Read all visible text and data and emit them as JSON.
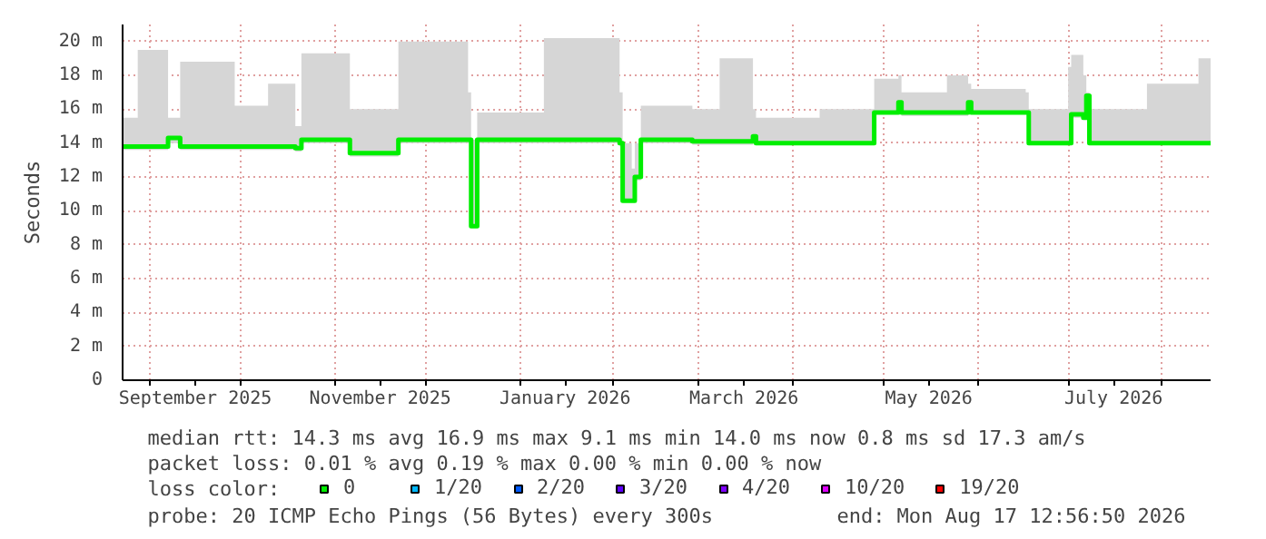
{
  "chart_data": {
    "type": "step",
    "ylabel": "Seconds",
    "xlim": [
      "2025-08-23",
      "2026-08-17"
    ],
    "xticks": [
      {
        "value": "2025-09-01",
        "label": null
      },
      {
        "value": "2025-09-16",
        "label": "September 2025"
      },
      {
        "value": "2025-10-01",
        "label": null
      },
      {
        "value": "2025-11-01",
        "label": null
      },
      {
        "value": "2025-11-16",
        "label": "November 2025"
      },
      {
        "value": "2025-12-01",
        "label": null
      },
      {
        "value": "2026-01-01",
        "label": null
      },
      {
        "value": "2026-01-16",
        "label": "January 2026"
      },
      {
        "value": "2026-02-01",
        "label": null
      },
      {
        "value": "2026-03-01",
        "label": null
      },
      {
        "value": "2026-03-16",
        "label": "March 2026"
      },
      {
        "value": "2026-04-01",
        "label": null
      },
      {
        "value": "2026-05-01",
        "label": null
      },
      {
        "value": "2026-05-16",
        "label": "May 2026"
      },
      {
        "value": "2026-06-01",
        "label": null
      },
      {
        "value": "2026-07-01",
        "label": null
      },
      {
        "value": "2026-07-16",
        "label": "July 2026"
      },
      {
        "value": "2026-08-01",
        "label": null
      }
    ],
    "ylim": [
      0,
      21
    ],
    "yticks": [
      0,
      {
        "value": 2,
        "label": "2 m"
      },
      {
        "value": 4,
        "label": "4 m"
      },
      {
        "value": 6,
        "label": "6 m"
      },
      {
        "value": 8,
        "label": "8 m"
      },
      {
        "value": 10,
        "label": "10 m"
      },
      {
        "value": 12,
        "label": "12 m"
      },
      {
        "value": 14,
        "label": "14 m"
      },
      {
        "value": 16,
        "label": "16 m"
      },
      {
        "value": 18,
        "label": "18 m"
      },
      {
        "value": 20,
        "label": "20 m"
      }
    ],
    "grid": true,
    "legend": "bottom",
    "legend_title": "loss color:",
    "x": [
      "2025-08-23",
      "2025-08-28",
      "2025-09-07",
      "2025-09-11",
      "2025-09-29",
      "2025-10-10",
      "2025-10-19",
      "2025-10-21",
      "2025-11-06",
      "2025-11-22",
      "2025-12-15",
      "2025-12-16",
      "2025-12-17",
      "2025-12-18",
      "2026-01-09",
      "2026-02-03",
      "2026-02-04",
      "2026-02-07",
      "2026-02-08",
      "2026-02-10",
      "2026-02-27",
      "2026-03-08",
      "2026-03-19",
      "2026-03-20",
      "2026-04-10",
      "2026-04-27",
      "2026-04-28",
      "2026-05-06",
      "2026-05-07",
      "2026-05-22",
      "2026-05-29",
      "2026-05-30",
      "2026-06-17",
      "2026-06-18",
      "2026-07-01",
      "2026-07-02",
      "2026-07-06",
      "2026-07-07",
      "2026-07-08",
      "2026-07-27",
      "2026-08-13",
      "2026-08-17"
    ],
    "series": [
      {
        "name": "0",
        "color": "#00ee00",
        "values": [
          13.8,
          13.8,
          14.3,
          13.8,
          13.8,
          13.8,
          13.7,
          14.2,
          13.4,
          14.2,
          14.2,
          9.1,
          9.1,
          14.2,
          14.2,
          14.0,
          10.6,
          10.6,
          12.0,
          14.2,
          14.1,
          14.1,
          14.4,
          14.0,
          14.0,
          14.0,
          15.8,
          16.4,
          15.8,
          15.8,
          16.4,
          15.8,
          15.8,
          14.0,
          14.0,
          15.7,
          15.5,
          16.8,
          14.0,
          14.0,
          14.0,
          14.0
        ],
        "lower": [
          13.6,
          13.6,
          14.0,
          13.6,
          13.6,
          13.6,
          13.5,
          14.0,
          13.2,
          14.0,
          14.0,
          9.0,
          9.0,
          14.0,
          14.0,
          13.8,
          10.5,
          10.5,
          11.8,
          14.0,
          13.9,
          13.9,
          14.1,
          13.9,
          13.9,
          13.9,
          15.7,
          16.0,
          15.6,
          15.6,
          16.0,
          15.7,
          15.7,
          13.9,
          13.9,
          15.5,
          15.4,
          16.5,
          13.9,
          13.9,
          13.9,
          13.9
        ],
        "upper": [
          15.5,
          19.5,
          15.5,
          18.8,
          16.2,
          17.5,
          15.0,
          19.3,
          16.0,
          20.0,
          17.0,
          14.2,
          14.2,
          15.8,
          20.2,
          17.0,
          14.0,
          12.5,
          14.0,
          16.2,
          16.0,
          19.0,
          16.0,
          15.5,
          16.0,
          16.0,
          17.8,
          18.0,
          17.0,
          18.0,
          17.5,
          17.2,
          17.0,
          16.0,
          18.5,
          19.2,
          18.0,
          17.0,
          16.0,
          17.5,
          19.0,
          16.0
        ]
      },
      {
        "name": "1/20",
        "color": "#00b8ff",
        "values": [
          null,
          null,
          null,
          null,
          null,
          null,
          null,
          null,
          null,
          null,
          null,
          null,
          null,
          null,
          null,
          null,
          null,
          null,
          null,
          null,
          null,
          null,
          null,
          null,
          null,
          null,
          null,
          null,
          null,
          null,
          null,
          null,
          null,
          null,
          null,
          null,
          null,
          null,
          null,
          null,
          null,
          null
        ]
      },
      {
        "name": "2/20",
        "color": "#0059ff",
        "values": [
          null,
          null,
          null,
          null,
          null,
          null,
          null,
          null,
          null,
          null,
          null,
          null,
          null,
          null,
          null,
          null,
          null,
          null,
          null,
          null,
          null,
          null,
          null,
          null,
          null,
          null,
          null,
          null,
          null,
          null,
          null,
          null,
          null,
          null,
          null,
          null,
          null,
          null,
          null,
          null,
          null,
          null
        ]
      },
      {
        "name": "3/20",
        "color": "#5e00ff",
        "values": [
          null,
          null,
          null,
          null,
          null,
          null,
          null,
          null,
          null,
          null,
          null,
          null,
          null,
          null,
          null,
          null,
          null,
          null,
          null,
          null,
          null,
          null,
          null,
          null,
          null,
          null,
          null,
          null,
          null,
          null,
          null,
          null,
          null,
          null,
          null,
          null,
          null,
          null,
          null,
          null,
          null,
          null
        ]
      },
      {
        "name": "4/20",
        "color": "#7e00ff",
        "values": [
          null,
          null,
          null,
          null,
          null,
          null,
          null,
          null,
          null,
          null,
          null,
          null,
          null,
          null,
          null,
          null,
          null,
          null,
          null,
          null,
          null,
          null,
          null,
          null,
          null,
          null,
          null,
          null,
          null,
          null,
          null,
          null,
          null,
          null,
          null,
          null,
          null,
          null,
          null,
          null,
          null,
          null
        ]
      },
      {
        "name": "10/20",
        "color": "#dd00ff",
        "values": [
          null,
          null,
          null,
          null,
          null,
          null,
          null,
          null,
          null,
          null,
          null,
          null,
          null,
          null,
          null,
          null,
          null,
          null,
          null,
          null,
          null,
          null,
          null,
          null,
          null,
          null,
          null,
          null,
          null,
          null,
          null,
          null,
          null,
          null,
          null,
          null,
          null,
          null,
          null,
          null,
          null,
          null
        ]
      },
      {
        "name": "19/20",
        "color": "#ff0000",
        "values": [
          null,
          null,
          null,
          null,
          null,
          null,
          null,
          null,
          null,
          null,
          null,
          null,
          null,
          null,
          null,
          null,
          null,
          null,
          null,
          null,
          null,
          null,
          null,
          null,
          null,
          null,
          null,
          null,
          null,
          null,
          null,
          null,
          null,
          null,
          null,
          null,
          null,
          null,
          null,
          null,
          null,
          null
        ]
      }
    ],
    "annotations": [
      "median rtt:  14.3 ms avg  16.9 ms max  9.1 ms min  14.0 ms now  0.8 ms sd  17.3   am/s",
      "packet loss: 0.01 % avg  0.19 % max  0.00 % min  0.00 % now",
      "probe:       20 ICMP Echo Pings (56 Bytes) every 300s",
      "end: Mon Aug 17 12:56:50 2026"
    ]
  }
}
